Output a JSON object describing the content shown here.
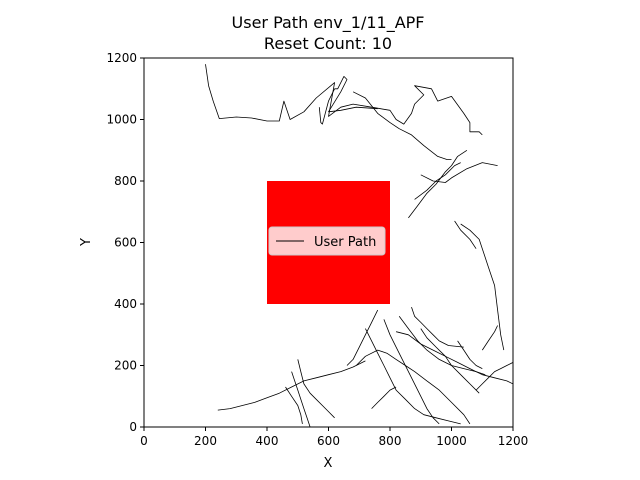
{
  "chart_data": {
    "type": "line",
    "title_line1": "User Path env_1/11_APF",
    "title_line2": "Reset Count: 10",
    "xlabel": "X",
    "ylabel": "Y",
    "xlim": [
      0,
      1200
    ],
    "ylim": [
      0,
      1200
    ],
    "xticks": [
      "0",
      "200",
      "400",
      "600",
      "800",
      "1000",
      "1200"
    ],
    "yticks": [
      "0",
      "200",
      "400",
      "600",
      "800",
      "1000",
      "1200"
    ],
    "obstacle": {
      "x0": 400,
      "y0": 400,
      "x1": 800,
      "y1": 800,
      "color": "#ff0000"
    },
    "legend": {
      "label": "User Path",
      "placement": "center"
    },
    "series": [
      {
        "name": "User Path",
        "color": "#000000",
        "segments": [
          [
            [
              200,
              1180
            ],
            [
              210,
              1110
            ],
            [
              225,
              1060
            ],
            [
              245,
              1003
            ],
            [
              300,
              1008
            ],
            [
              350,
              1005
            ],
            [
              400,
              995
            ],
            [
              440,
              995
            ],
            [
              455,
              1060
            ],
            [
              475,
              1000
            ],
            [
              520,
              1025
            ],
            [
              560,
              1070
            ],
            [
              620,
              1120
            ],
            [
              600,
              1010
            ],
            [
              640,
              1040
            ],
            [
              680,
              1050
            ],
            [
              740,
              1040
            ],
            [
              800,
              1030
            ],
            [
              820,
              1000
            ],
            [
              845,
              985
            ],
            [
              870,
              1020
            ],
            [
              880,
              1050
            ],
            [
              910,
              1080
            ],
            [
              880,
              1110
            ],
            [
              935,
              1100
            ],
            [
              955,
              1060
            ],
            [
              1000,
              1075
            ],
            [
              1040,
              1020
            ],
            [
              1060,
              990
            ],
            [
              1060,
              960
            ],
            [
              1090,
              960
            ],
            [
              1100,
              950
            ]
          ],
          [
            [
              570,
              1040
            ],
            [
              575,
              990
            ],
            [
              580,
              985
            ],
            [
              600,
              1060
            ],
            [
              620,
              1100
            ],
            [
              630,
              1100
            ],
            [
              650,
              1140
            ],
            [
              660,
              1130
            ],
            [
              640,
              1090
            ],
            [
              600,
              1025
            ],
            [
              640,
              1030
            ],
            [
              690,
              1040
            ],
            [
              760,
              1035
            ]
          ],
          [
            [
              680,
              1090
            ],
            [
              720,
              1070
            ],
            [
              760,
              1020
            ],
            [
              800,
              990
            ],
            [
              830,
              970
            ],
            [
              870,
              950
            ],
            [
              910,
              915
            ],
            [
              955,
              880
            ],
            [
              985,
              870
            ],
            [
              1000,
              870
            ]
          ],
          [
            [
              900,
              820
            ],
            [
              940,
              800
            ],
            [
              980,
              795
            ],
            [
              1000,
              810
            ],
            [
              1050,
              840
            ],
            [
              1100,
              860
            ],
            [
              1150,
              850
            ]
          ],
          [
            [
              880,
              740
            ],
            [
              920,
              770
            ],
            [
              950,
              800
            ],
            [
              980,
              820
            ],
            [
              1010,
              850
            ],
            [
              1030,
              860
            ]
          ],
          [
            [
              860,
              680
            ],
            [
              890,
              720
            ],
            [
              920,
              760
            ],
            [
              950,
              790
            ],
            [
              980,
              830
            ],
            [
              1000,
              850
            ],
            [
              1020,
              880
            ],
            [
              1050,
              900
            ]
          ],
          [
            [
              1030,
              660
            ],
            [
              1060,
              640
            ],
            [
              1090,
              610
            ],
            [
              1100,
              580
            ],
            [
              1120,
              520
            ],
            [
              1140,
              460
            ],
            [
              1150,
              380
            ],
            [
              1160,
              300
            ],
            [
              1170,
              250
            ]
          ],
          [
            [
              1010,
              670
            ],
            [
              1030,
              640
            ],
            [
              1060,
              610
            ],
            [
              1080,
              580
            ]
          ],
          [
            [
              900,
              320
            ],
            [
              920,
              290
            ],
            [
              950,
              260
            ],
            [
              980,
              230
            ],
            [
              1000,
              200
            ],
            [
              1030,
              170
            ],
            [
              1060,
              140
            ],
            [
              1090,
              110
            ]
          ],
          [
            [
              820,
              310
            ],
            [
              860,
              300
            ],
            [
              900,
              270
            ],
            [
              940,
              250
            ],
            [
              980,
              230
            ],
            [
              1020,
              210
            ],
            [
              1060,
              190
            ],
            [
              1100,
              170
            ],
            [
              1140,
              160
            ],
            [
              1180,
              150
            ],
            [
              1200,
              140
            ]
          ],
          [
            [
              780,
              350
            ],
            [
              800,
              300
            ],
            [
              820,
              260
            ],
            [
              840,
              220
            ],
            [
              860,
              180
            ],
            [
              880,
              140
            ],
            [
              900,
              100
            ],
            [
              920,
              60
            ],
            [
              940,
              30
            ],
            [
              960,
              10
            ]
          ],
          [
            [
              720,
              320
            ],
            [
              740,
              280
            ],
            [
              760,
              240
            ],
            [
              780,
              200
            ],
            [
              800,
              160
            ],
            [
              820,
              120
            ],
            [
              850,
              90
            ],
            [
              880,
              60
            ],
            [
              910,
              40
            ],
            [
              950,
              30
            ],
            [
              990,
              20
            ],
            [
              1030,
              10
            ]
          ],
          [
            [
              760,
              380
            ],
            [
              740,
              340
            ],
            [
              720,
              300
            ],
            [
              700,
              260
            ],
            [
              680,
              220
            ],
            [
              660,
              200
            ]
          ],
          [
            [
              830,
              360
            ],
            [
              860,
              320
            ],
            [
              890,
              280
            ],
            [
              920,
              250
            ],
            [
              960,
              220
            ],
            [
              1000,
              200
            ],
            [
              1040,
              190
            ],
            [
              1080,
              180
            ],
            [
              1110,
              170
            ]
          ],
          [
            [
              690,
              200
            ],
            [
              720,
              230
            ],
            [
              760,
              250
            ],
            [
              790,
              240
            ],
            [
              820,
              220
            ],
            [
              850,
              200
            ],
            [
              880,
              180
            ],
            [
              920,
              150
            ],
            [
              960,
              120
            ],
            [
              1000,
              80
            ],
            [
              1040,
              40
            ],
            [
              1060,
              10
            ]
          ],
          [
            [
              500,
              220
            ],
            [
              510,
              180
            ],
            [
              520,
              140
            ],
            [
              540,
              110
            ],
            [
              560,
              90
            ],
            [
              580,
              70
            ],
            [
              600,
              50
            ],
            [
              620,
              30
            ]
          ],
          [
            [
              480,
              180
            ],
            [
              490,
              150
            ],
            [
              500,
              120
            ],
            [
              510,
              90
            ],
            [
              520,
              60
            ],
            [
              530,
              30
            ],
            [
              540,
              0
            ]
          ],
          [
            [
              240,
              55
            ],
            [
              280,
              60
            ],
            [
              320,
              70
            ],
            [
              360,
              80
            ],
            [
              400,
              95
            ],
            [
              440,
              110
            ],
            [
              480,
              130
            ],
            [
              520,
              150
            ],
            [
              560,
              160
            ],
            [
              600,
              170
            ],
            [
              640,
              180
            ],
            [
              680,
              195
            ],
            [
              720,
              215
            ]
          ],
          [
            [
              460,
              130
            ],
            [
              480,
              100
            ],
            [
              500,
              70
            ],
            [
              510,
              40
            ],
            [
              515,
              10
            ]
          ],
          [
            [
              740,
              60
            ],
            [
              760,
              80
            ],
            [
              780,
              100
            ],
            [
              800,
              120
            ],
            [
              820,
              130
            ]
          ],
          [
            [
              1080,
              120
            ],
            [
              1100,
              140
            ],
            [
              1120,
              160
            ],
            [
              1140,
              180
            ],
            [
              1160,
              190
            ],
            [
              1180,
              200
            ],
            [
              1200,
              210
            ]
          ],
          [
            [
              1100,
              250
            ],
            [
              1120,
              280
            ],
            [
              1140,
              310
            ],
            [
              1150,
              330
            ]
          ],
          [
            [
              1020,
              280
            ],
            [
              1040,
              250
            ],
            [
              1060,
              220
            ],
            [
              1080,
              200
            ],
            [
              1100,
              190
            ]
          ],
          [
            [
              870,
              390
            ],
            [
              880,
              360
            ],
            [
              900,
              340
            ],
            [
              920,
              320
            ],
            [
              940,
              300
            ],
            [
              960,
              280
            ],
            [
              990,
              265
            ],
            [
              1040,
              260
            ]
          ]
        ]
      }
    ]
  }
}
